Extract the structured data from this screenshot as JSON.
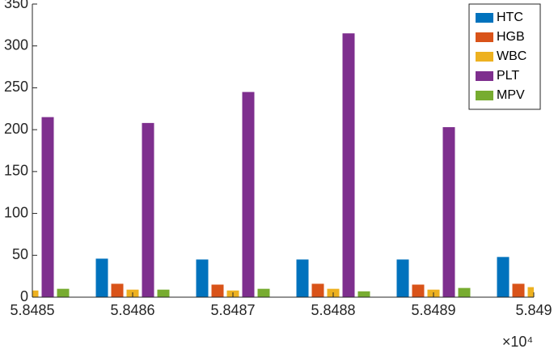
{
  "chart_data": {
    "type": "bar",
    "x": [
      5.8485,
      5.8486,
      5.8487,
      5.8488,
      5.8489,
      5.849
    ],
    "series": [
      {
        "name": "HTC",
        "color": "#0072BD",
        "values": [
          null,
          46,
          45,
          45,
          45,
          48
        ]
      },
      {
        "name": "HGB",
        "color": "#D95319",
        "values": [
          null,
          16,
          15,
          16,
          15,
          16
        ]
      },
      {
        "name": "WBC",
        "color": "#EDB120",
        "values": [
          8,
          9,
          8,
          10,
          9,
          12
        ]
      },
      {
        "name": "PLT",
        "color": "#7E2F8E",
        "values": [
          215,
          208,
          245,
          315,
          203,
          null
        ]
      },
      {
        "name": "MPV",
        "color": "#77AC30",
        "values": [
          10,
          9,
          10,
          7,
          11,
          null
        ]
      }
    ],
    "xlim": [
      5.8485,
      5.849
    ],
    "xticks": [
      5.8485,
      5.8486,
      5.8487,
      5.8488,
      5.8489,
      5.849
    ],
    "x_exponent_label": "×10⁴",
    "ylim": [
      0,
      350
    ],
    "yticks": [
      0,
      50,
      100,
      150,
      200,
      250,
      300,
      350
    ],
    "grid": false,
    "legend": "top-right"
  }
}
